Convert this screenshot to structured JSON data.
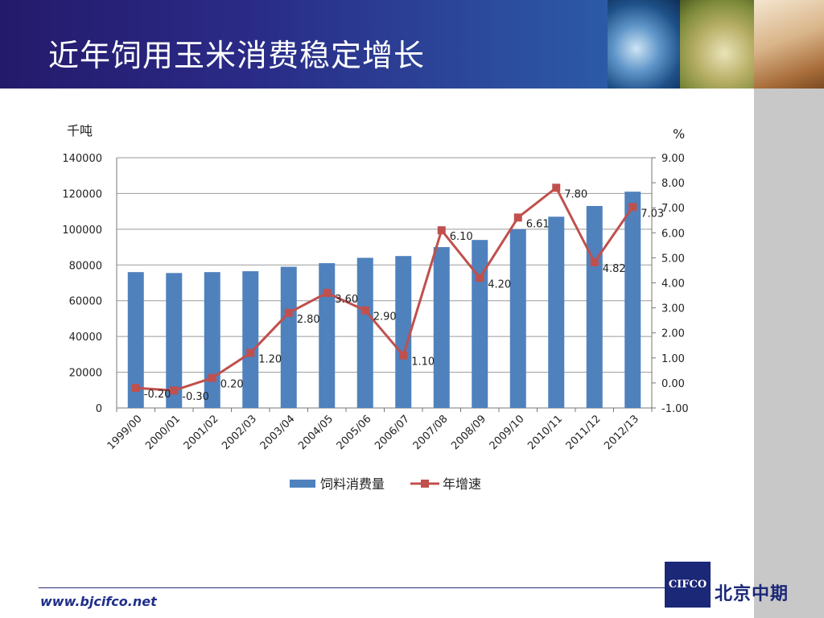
{
  "header": {
    "title": "近年饲用玉米消费稳定增长"
  },
  "footer": {
    "url": "www.bjcifco.net",
    "logo_text": "CIFCO",
    "logo_cn": "北京中期"
  },
  "colors": {
    "bar": "#4f81bd",
    "line": "#c0504d",
    "header": "#2a2a86"
  },
  "chart_data": {
    "type": "bar",
    "categories": [
      "1999/00",
      "2000/01",
      "2001/02",
      "2002/03",
      "2003/04",
      "2004/05",
      "2005/06",
      "2006/07",
      "2007/08",
      "2008/09",
      "2009/10",
      "2010/11",
      "2011/12",
      "2012/13"
    ],
    "series": [
      {
        "name": "饲料消费量",
        "type": "bar",
        "axis": "left",
        "values": [
          76000,
          75500,
          76000,
          76500,
          79000,
          81000,
          84000,
          85000,
          90000,
          94000,
          100000,
          107000,
          113000,
          121000
        ]
      },
      {
        "name": "年增速",
        "type": "line",
        "axis": "right",
        "values": [
          -0.2,
          -0.3,
          0.2,
          1.2,
          2.8,
          3.6,
          2.9,
          1.1,
          6.1,
          4.2,
          6.61,
          7.8,
          4.82,
          7.03
        ],
        "labels": [
          "-0.20",
          "-0.30",
          "0.20",
          "1.20",
          "2.80",
          "3.60",
          "2.90",
          "1.10",
          "6.10",
          "4.20",
          "6.61",
          "7.80",
          "4.82",
          "7.03"
        ]
      }
    ],
    "y_left": {
      "unit": "千吨",
      "min": 0,
      "max": 140000,
      "ticks": [
        "0",
        "20000",
        "40000",
        "60000",
        "80000",
        "100000",
        "120000",
        "140000"
      ]
    },
    "y_right": {
      "unit": "%",
      "min": -1,
      "max": 9,
      "ticks": [
        "-1.00",
        "0.00",
        "1.00",
        "2.00",
        "3.00",
        "4.00",
        "5.00",
        "6.00",
        "7.00",
        "8.00",
        "9.00"
      ]
    },
    "grid": true,
    "legend_position": "bottom"
  }
}
